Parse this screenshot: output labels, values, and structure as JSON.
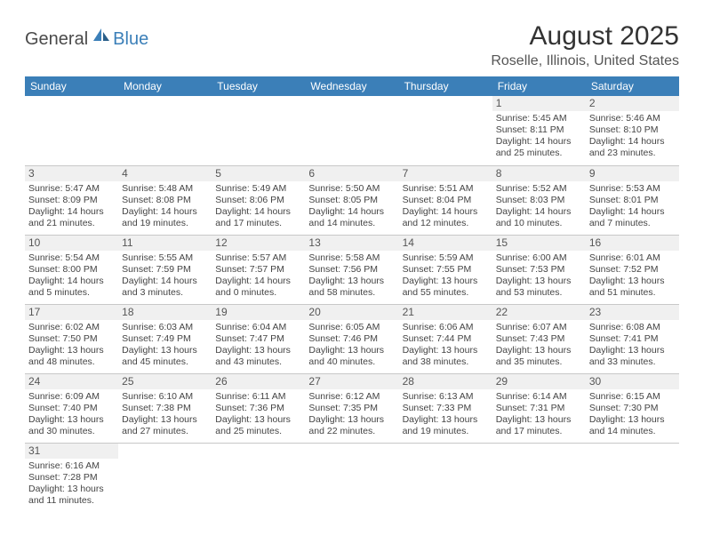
{
  "logo": {
    "general": "General",
    "blue": "Blue"
  },
  "title": "August 2025",
  "subtitle": "Roselle, Illinois, United States",
  "colors": {
    "header_bg": "#3b7fb8",
    "header_text": "#ffffff",
    "daynum_bg": "#f0f0f0",
    "border": "#c8c8c8",
    "text": "#444444",
    "logo_gray": "#4a4a4a",
    "logo_blue": "#3b7fb8"
  },
  "days_of_week": [
    "Sunday",
    "Monday",
    "Tuesday",
    "Wednesday",
    "Thursday",
    "Friday",
    "Saturday"
  ],
  "weeks": [
    [
      null,
      null,
      null,
      null,
      null,
      {
        "n": "1",
        "sunrise": "5:45 AM",
        "sunset": "8:11 PM",
        "dl1": "Daylight: 14 hours",
        "dl2": "and 25 minutes."
      },
      {
        "n": "2",
        "sunrise": "5:46 AM",
        "sunset": "8:10 PM",
        "dl1": "Daylight: 14 hours",
        "dl2": "and 23 minutes."
      }
    ],
    [
      {
        "n": "3",
        "sunrise": "5:47 AM",
        "sunset": "8:09 PM",
        "dl1": "Daylight: 14 hours",
        "dl2": "and 21 minutes."
      },
      {
        "n": "4",
        "sunrise": "5:48 AM",
        "sunset": "8:08 PM",
        "dl1": "Daylight: 14 hours",
        "dl2": "and 19 minutes."
      },
      {
        "n": "5",
        "sunrise": "5:49 AM",
        "sunset": "8:06 PM",
        "dl1": "Daylight: 14 hours",
        "dl2": "and 17 minutes."
      },
      {
        "n": "6",
        "sunrise": "5:50 AM",
        "sunset": "8:05 PM",
        "dl1": "Daylight: 14 hours",
        "dl2": "and 14 minutes."
      },
      {
        "n": "7",
        "sunrise": "5:51 AM",
        "sunset": "8:04 PM",
        "dl1": "Daylight: 14 hours",
        "dl2": "and 12 minutes."
      },
      {
        "n": "8",
        "sunrise": "5:52 AM",
        "sunset": "8:03 PM",
        "dl1": "Daylight: 14 hours",
        "dl2": "and 10 minutes."
      },
      {
        "n": "9",
        "sunrise": "5:53 AM",
        "sunset": "8:01 PM",
        "dl1": "Daylight: 14 hours",
        "dl2": "and 7 minutes."
      }
    ],
    [
      {
        "n": "10",
        "sunrise": "5:54 AM",
        "sunset": "8:00 PM",
        "dl1": "Daylight: 14 hours",
        "dl2": "and 5 minutes."
      },
      {
        "n": "11",
        "sunrise": "5:55 AM",
        "sunset": "7:59 PM",
        "dl1": "Daylight: 14 hours",
        "dl2": "and 3 minutes."
      },
      {
        "n": "12",
        "sunrise": "5:57 AM",
        "sunset": "7:57 PM",
        "dl1": "Daylight: 14 hours",
        "dl2": "and 0 minutes."
      },
      {
        "n": "13",
        "sunrise": "5:58 AM",
        "sunset": "7:56 PM",
        "dl1": "Daylight: 13 hours",
        "dl2": "and 58 minutes."
      },
      {
        "n": "14",
        "sunrise": "5:59 AM",
        "sunset": "7:55 PM",
        "dl1": "Daylight: 13 hours",
        "dl2": "and 55 minutes."
      },
      {
        "n": "15",
        "sunrise": "6:00 AM",
        "sunset": "7:53 PM",
        "dl1": "Daylight: 13 hours",
        "dl2": "and 53 minutes."
      },
      {
        "n": "16",
        "sunrise": "6:01 AM",
        "sunset": "7:52 PM",
        "dl1": "Daylight: 13 hours",
        "dl2": "and 51 minutes."
      }
    ],
    [
      {
        "n": "17",
        "sunrise": "6:02 AM",
        "sunset": "7:50 PM",
        "dl1": "Daylight: 13 hours",
        "dl2": "and 48 minutes."
      },
      {
        "n": "18",
        "sunrise": "6:03 AM",
        "sunset": "7:49 PM",
        "dl1": "Daylight: 13 hours",
        "dl2": "and 45 minutes."
      },
      {
        "n": "19",
        "sunrise": "6:04 AM",
        "sunset": "7:47 PM",
        "dl1": "Daylight: 13 hours",
        "dl2": "and 43 minutes."
      },
      {
        "n": "20",
        "sunrise": "6:05 AM",
        "sunset": "7:46 PM",
        "dl1": "Daylight: 13 hours",
        "dl2": "and 40 minutes."
      },
      {
        "n": "21",
        "sunrise": "6:06 AM",
        "sunset": "7:44 PM",
        "dl1": "Daylight: 13 hours",
        "dl2": "and 38 minutes."
      },
      {
        "n": "22",
        "sunrise": "6:07 AM",
        "sunset": "7:43 PM",
        "dl1": "Daylight: 13 hours",
        "dl2": "and 35 minutes."
      },
      {
        "n": "23",
        "sunrise": "6:08 AM",
        "sunset": "7:41 PM",
        "dl1": "Daylight: 13 hours",
        "dl2": "and 33 minutes."
      }
    ],
    [
      {
        "n": "24",
        "sunrise": "6:09 AM",
        "sunset": "7:40 PM",
        "dl1": "Daylight: 13 hours",
        "dl2": "and 30 minutes."
      },
      {
        "n": "25",
        "sunrise": "6:10 AM",
        "sunset": "7:38 PM",
        "dl1": "Daylight: 13 hours",
        "dl2": "and 27 minutes."
      },
      {
        "n": "26",
        "sunrise": "6:11 AM",
        "sunset": "7:36 PM",
        "dl1": "Daylight: 13 hours",
        "dl2": "and 25 minutes."
      },
      {
        "n": "27",
        "sunrise": "6:12 AM",
        "sunset": "7:35 PM",
        "dl1": "Daylight: 13 hours",
        "dl2": "and 22 minutes."
      },
      {
        "n": "28",
        "sunrise": "6:13 AM",
        "sunset": "7:33 PM",
        "dl1": "Daylight: 13 hours",
        "dl2": "and 19 minutes."
      },
      {
        "n": "29",
        "sunrise": "6:14 AM",
        "sunset": "7:31 PM",
        "dl1": "Daylight: 13 hours",
        "dl2": "and 17 minutes."
      },
      {
        "n": "30",
        "sunrise": "6:15 AM",
        "sunset": "7:30 PM",
        "dl1": "Daylight: 13 hours",
        "dl2": "and 14 minutes."
      }
    ],
    [
      {
        "n": "31",
        "sunrise": "6:16 AM",
        "sunset": "7:28 PM",
        "dl1": "Daylight: 13 hours",
        "dl2": "and 11 minutes."
      },
      null,
      null,
      null,
      null,
      null,
      null
    ]
  ],
  "labels": {
    "sunrise_prefix": "Sunrise: ",
    "sunset_prefix": "Sunset: "
  }
}
